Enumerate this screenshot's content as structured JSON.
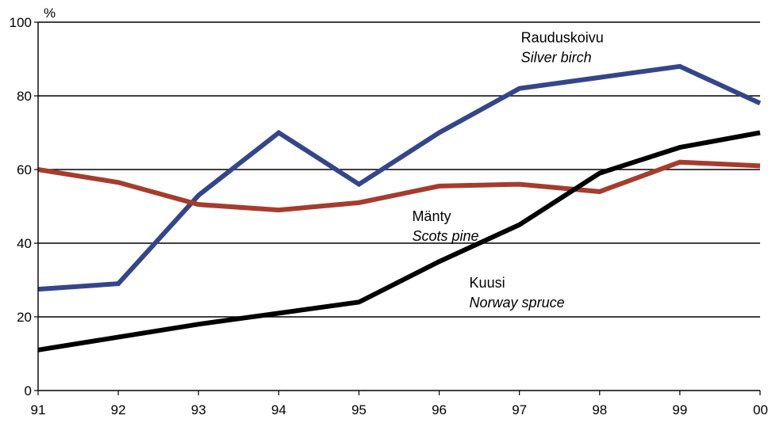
{
  "chart_data": {
    "type": "line",
    "title": "",
    "xlabel": "",
    "ylabel": "%",
    "categories": [
      "91",
      "92",
      "93",
      "94",
      "95",
      "96",
      "97",
      "98",
      "99",
      "00"
    ],
    "ylim": [
      0,
      100
    ],
    "yticks": [
      "0",
      "20",
      "40",
      "60",
      "80",
      "100"
    ],
    "grid": true,
    "series": [
      {
        "name": "Rauduskoivu",
        "name_en": "Silver birch",
        "color": "#34468a",
        "values": [
          27.5,
          29,
          53,
          70,
          56,
          70,
          82,
          85,
          88,
          78
        ]
      },
      {
        "name": "Mänty",
        "name_en": "Scots pine",
        "color": "#a63c2d",
        "values": [
          60,
          56.5,
          50.5,
          49,
          51,
          55.5,
          56,
          54,
          62,
          61
        ]
      },
      {
        "name": "Kuusi",
        "name_en": "Norway spruce",
        "color": "#000000",
        "values": [
          11,
          14.5,
          18,
          21,
          24,
          35,
          45,
          59,
          66,
          70
        ]
      }
    ]
  }
}
